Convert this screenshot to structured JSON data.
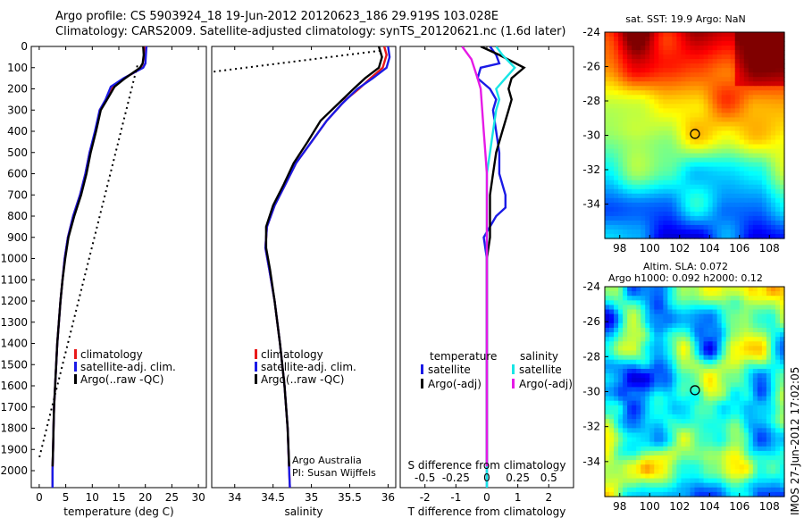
{
  "header": {
    "line1": "Argo profile: CS 5903924_18 19-Jun-2012 20120623_186 29.919S 103.028E",
    "line2": "Climatology: CARS2009. Satellite-adjusted climatology: synTS_20120621.nc (1.6d later)"
  },
  "colors": {
    "climatology": "#e8191a",
    "satellite": "#1a1ae6",
    "argo": "#000000",
    "sal_sat": "#18e6e6",
    "sal_argo": "#e61ae6"
  },
  "chart_data": [
    {
      "type": "line",
      "panel": "temperature",
      "xlabel": "temperature (deg C)",
      "xlim": [
        -1.5,
        31.5
      ],
      "ylim": [
        2080,
        0
      ],
      "xticks": [
        0,
        5,
        10,
        15,
        20,
        25,
        30
      ],
      "yticks": [
        0,
        100,
        200,
        300,
        400,
        500,
        600,
        700,
        800,
        900,
        1000,
        1100,
        1200,
        1300,
        1400,
        1500,
        1600,
        1700,
        1800,
        1900,
        2000
      ],
      "legend": [
        "climatology",
        "satellite-adj. clim.",
        "Argo(..raw -QC)"
      ],
      "series": [
        {
          "name": "climatology",
          "color": "#e8191a",
          "points": [
            [
              20,
              0
            ],
            [
              20,
              40
            ],
            [
              20,
              80
            ],
            [
              19.5,
              100
            ],
            [
              16,
              150
            ],
            [
              13.8,
              190
            ],
            [
              12.6,
              250
            ],
            [
              11.4,
              300
            ],
            [
              10.6,
              400
            ],
            [
              9.5,
              500
            ],
            [
              8.7,
              600
            ],
            [
              7.7,
              700
            ],
            [
              6.4,
              800
            ],
            [
              5.4,
              900
            ],
            [
              4.8,
              1000
            ],
            [
              4.4,
              1100
            ],
            [
              4.0,
              1200
            ],
            [
              3.7,
              1300
            ],
            [
              3.4,
              1400
            ],
            [
              3.2,
              1500
            ],
            [
              3.0,
              1600
            ],
            [
              2.8,
              1700
            ],
            [
              2.7,
              1800
            ],
            [
              2.6,
              1900
            ],
            [
              2.5,
              2000
            ],
            [
              2.5,
              2080
            ]
          ]
        },
        {
          "name": "satellite-adj. clim.",
          "color": "#1a1ae6",
          "points": [
            [
              20.2,
              0
            ],
            [
              20.1,
              40
            ],
            [
              20,
              80
            ],
            [
              19.6,
              100
            ],
            [
              15.9,
              150
            ],
            [
              13.5,
              190
            ],
            [
              12.5,
              250
            ],
            [
              11.4,
              300
            ],
            [
              10.5,
              400
            ],
            [
              9.5,
              500
            ],
            [
              8.7,
              600
            ],
            [
              7.7,
              700
            ],
            [
              6.4,
              800
            ],
            [
              5.4,
              900
            ],
            [
              4.8,
              1000
            ],
            [
              4.4,
              1100
            ],
            [
              4.0,
              1200
            ],
            [
              3.7,
              1300
            ],
            [
              3.4,
              1400
            ],
            [
              3.2,
              1500
            ],
            [
              3.0,
              1600
            ],
            [
              2.8,
              1700
            ],
            [
              2.7,
              1800
            ],
            [
              2.6,
              1900
            ],
            [
              2.5,
              2000
            ],
            [
              2.5,
              2080
            ]
          ]
        },
        {
          "name": "Argo(..raw -QC)",
          "color": "#000000",
          "points": [
            [
              19.6,
              0
            ],
            [
              19.7,
              40
            ],
            [
              19.5,
              80
            ],
            [
              19.0,
              100
            ],
            [
              16.2,
              150
            ],
            [
              14.2,
              190
            ],
            [
              12.8,
              250
            ],
            [
              11.6,
              300
            ],
            [
              10.7,
              400
            ],
            [
              9.7,
              500
            ],
            [
              8.9,
              600
            ],
            [
              7.9,
              700
            ],
            [
              6.6,
              800
            ],
            [
              5.5,
              900
            ],
            [
              4.9,
              1000
            ],
            [
              4.4,
              1100
            ],
            [
              4.0,
              1200
            ],
            [
              3.7,
              1300
            ],
            [
              3.4,
              1400
            ],
            [
              3.2,
              1500
            ],
            [
              3.0,
              1600
            ],
            [
              2.8,
              1700
            ],
            [
              2.7,
              1800
            ],
            [
              2.6,
              1900
            ],
            [
              2.5,
              1980
            ]
          ]
        },
        {
          "name": "",
          "color": "#000000",
          "dotted": true,
          "points": [
            [
              18.5,
              90
            ],
            [
              0,
              1940
            ]
          ]
        }
      ]
    },
    {
      "type": "line",
      "panel": "salinity",
      "xlabel": "salinity",
      "xlim": [
        33.7,
        36.1
      ],
      "ylim": [
        2080,
        0
      ],
      "xticks": [
        34,
        34.5,
        35,
        35.5,
        36
      ],
      "legend": [
        "climatology",
        "satellite-adj. clim.",
        "Argo(..raw -QC)"
      ],
      "annotation": [
        "Argo Australia",
        "PI: Susan Wijffels"
      ],
      "series": [
        {
          "name": "climatology",
          "color": "#e8191a",
          "points": [
            [
              35.95,
              0
            ],
            [
              35.98,
              40
            ],
            [
              35.93,
              100
            ],
            [
              35.77,
              150
            ],
            [
              35.62,
              200
            ],
            [
              35.45,
              250
            ],
            [
              35.2,
              350
            ],
            [
              35.0,
              450
            ],
            [
              34.8,
              550
            ],
            [
              34.66,
              650
            ],
            [
              34.52,
              750
            ],
            [
              34.42,
              850
            ],
            [
              34.4,
              950
            ],
            [
              34.45,
              1050
            ],
            [
              34.52,
              1200
            ],
            [
              34.59,
              1400
            ],
            [
              34.65,
              1600
            ],
            [
              34.69,
              1800
            ],
            [
              34.71,
              2000
            ],
            [
              34.72,
              2080
            ]
          ]
        },
        {
          "name": "satellite-adj. clim.",
          "color": "#1a1ae6",
          "points": [
            [
              36.0,
              0
            ],
            [
              36.02,
              50
            ],
            [
              35.98,
              100
            ],
            [
              35.8,
              150
            ],
            [
              35.6,
              200
            ],
            [
              35.4,
              270
            ],
            [
              35.2,
              350
            ],
            [
              35.0,
              450
            ],
            [
              34.8,
              550
            ],
            [
              34.66,
              650
            ],
            [
              34.52,
              750
            ],
            [
              34.42,
              850
            ],
            [
              34.4,
              950
            ],
            [
              34.45,
              1050
            ],
            [
              34.52,
              1200
            ],
            [
              34.59,
              1400
            ],
            [
              34.65,
              1600
            ],
            [
              34.69,
              1800
            ],
            [
              34.71,
              2000
            ],
            [
              34.72,
              2080
            ]
          ]
        },
        {
          "name": "Argo(..raw -QC)",
          "color": "#000000",
          "points": [
            [
              35.88,
              0
            ],
            [
              35.92,
              50
            ],
            [
              35.88,
              100
            ],
            [
              35.7,
              150
            ],
            [
              35.55,
              200
            ],
            [
              35.35,
              270
            ],
            [
              35.12,
              350
            ],
            [
              34.95,
              450
            ],
            [
              34.77,
              550
            ],
            [
              34.64,
              650
            ],
            [
              34.5,
              750
            ],
            [
              34.41,
              850
            ],
            [
              34.41,
              950
            ],
            [
              34.46,
              1050
            ],
            [
              34.52,
              1200
            ],
            [
              34.59,
              1400
            ],
            [
              34.65,
              1600
            ],
            [
              34.69,
              1800
            ],
            [
              34.71,
              1980
            ]
          ]
        },
        {
          "name": "",
          "color": "#000000",
          "dotted": true,
          "points": [
            [
              35.9,
              20
            ],
            [
              33.7,
              120
            ]
          ]
        }
      ]
    },
    {
      "type": "line",
      "panel": "difference",
      "xlabel": "T difference from climatology",
      "xlabel_top": "S difference from climatology",
      "xlim": [
        -2.8,
        2.8
      ],
      "ylim": [
        2080,
        0
      ],
      "xticks": [
        -2,
        -1,
        0,
        1,
        2
      ],
      "top_ticks": [
        "-0.5",
        "-0.25",
        "0",
        "0.25",
        "0.5"
      ],
      "top_tick_pos": [
        -2,
        -1,
        0,
        1,
        2
      ],
      "legend_temperature": {
        "title": "temperature",
        "items": [
          "satellite",
          "Argo(-adj)"
        ]
      },
      "legend_salinity": {
        "title": "salinity",
        "items": [
          "satellite",
          "Argo(-adj)"
        ]
      },
      "series": [
        {
          "name": "temperature satellite",
          "color": "#1a1ae6",
          "points": [
            [
              0.1,
              0
            ],
            [
              0.3,
              40
            ],
            [
              0.4,
              80
            ],
            [
              -0.2,
              100
            ],
            [
              -0.3,
              150
            ],
            [
              0.1,
              200
            ],
            [
              0.3,
              250
            ],
            [
              0.2,
              300
            ],
            [
              0.3,
              400
            ],
            [
              0.4,
              500
            ],
            [
              0.4,
              600
            ],
            [
              0.6,
              700
            ],
            [
              0.6,
              760
            ],
            [
              0.3,
              800
            ],
            [
              -0.1,
              900
            ],
            [
              0,
              1000
            ],
            [
              0,
              1200
            ],
            [
              0,
              1500
            ],
            [
              0,
              2000
            ],
            [
              0,
              2080
            ]
          ]
        },
        {
          "name": "temperature Argo(-adj)",
          "color": "#000000",
          "points": [
            [
              -0.2,
              0
            ],
            [
              0.4,
              40
            ],
            [
              1.2,
              100
            ],
            [
              0.8,
              150
            ],
            [
              0.7,
              200
            ],
            [
              0.8,
              250
            ],
            [
              0.7,
              300
            ],
            [
              0.5,
              400
            ],
            [
              0.3,
              500
            ],
            [
              0.2,
              600
            ],
            [
              0.1,
              700
            ],
            [
              0.1,
              800
            ],
            [
              0.1,
              900
            ],
            [
              0,
              1000
            ],
            [
              0,
              1200
            ],
            [
              0,
              1500
            ],
            [
              0,
              1980
            ]
          ]
        },
        {
          "name": "salinity satellite",
          "color": "#18e6e6",
          "points": [
            [
              0.3,
              0
            ],
            [
              0.5,
              40
            ],
            [
              0.9,
              100
            ],
            [
              0.6,
              150
            ],
            [
              0.3,
              200
            ],
            [
              0.4,
              250
            ],
            [
              0.3,
              300
            ],
            [
              0.2,
              400
            ],
            [
              0.1,
              500
            ],
            [
              0,
              600
            ],
            [
              0,
              800
            ],
            [
              0,
              1000
            ],
            [
              0,
              1200
            ],
            [
              0,
              1500
            ],
            [
              0,
              2000
            ],
            [
              0,
              2080
            ]
          ]
        },
        {
          "name": "salinity Argo(-adj)",
          "color": "#e61ae6",
          "points": [
            [
              -0.8,
              0
            ],
            [
              -0.5,
              60
            ],
            [
              -0.3,
              150
            ],
            [
              -0.2,
              200
            ],
            [
              -0.15,
              300
            ],
            [
              -0.1,
              400
            ],
            [
              -0.05,
              500
            ],
            [
              0,
              600
            ],
            [
              0,
              800
            ],
            [
              0,
              1000
            ],
            [
              0,
              1200
            ],
            [
              0,
              1500
            ],
            [
              0,
              1980
            ]
          ]
        }
      ]
    },
    {
      "type": "heatmap",
      "panel": "sst_map",
      "title": "sat. SST: 19.9 Argo: NaN",
      "xlim": [
        97,
        109
      ],
      "ylim": [
        -36,
        -24
      ],
      "xticks": [
        98,
        100,
        102,
        104,
        106,
        108
      ],
      "yticks": [
        -24,
        -26,
        -28,
        -30,
        -32,
        -34
      ],
      "marker": [
        103.028,
        -29.919
      ]
    },
    {
      "type": "heatmap",
      "panel": "sla_map",
      "title": "Altim. SLA: 0.072",
      "subtitle": "Argo h1000: 0.092 h2000: 0.12",
      "xlim": [
        97,
        109
      ],
      "ylim": [
        -36,
        -24
      ],
      "xticks": [
        98,
        100,
        102,
        104,
        106,
        108
      ],
      "yticks": [
        -24,
        -26,
        -28,
        -30,
        -32,
        -34
      ],
      "marker": [
        103.028,
        -29.919
      ]
    }
  ],
  "stamp": "IMOS 27-Jun-2012 17:02:05"
}
